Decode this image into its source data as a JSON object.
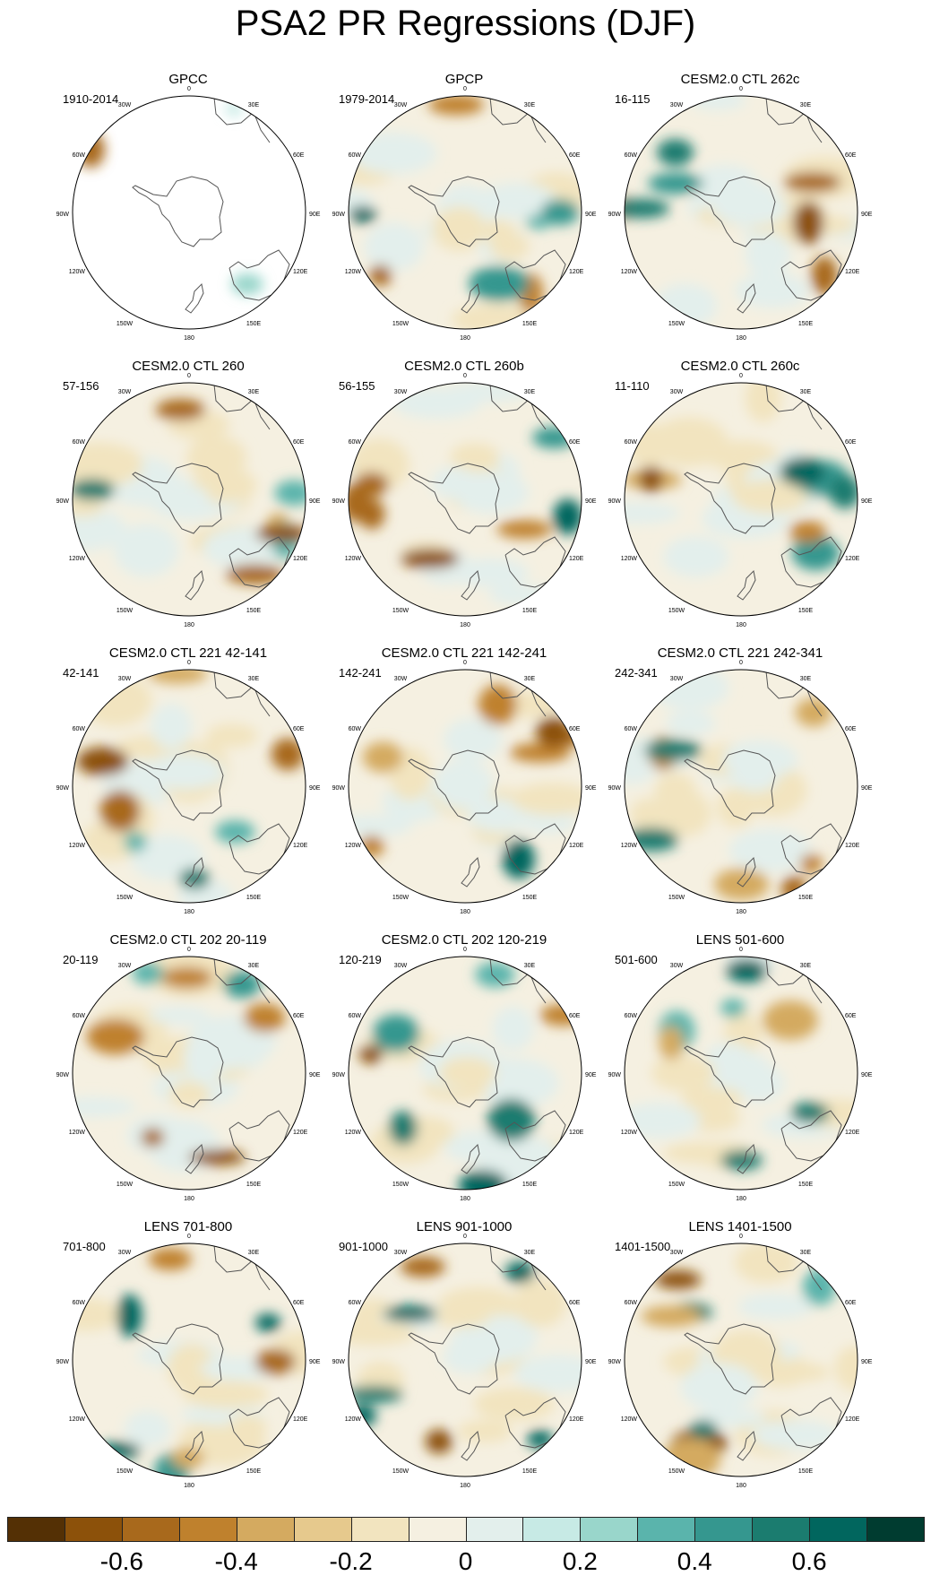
{
  "title": "PSA2 PR Regressions (DJF)",
  "map_labels": {
    "lon_top": "0",
    "lon_bottom": "180",
    "lon_left": "90W",
    "lon_right": "90E",
    "lon_30w": "30W",
    "lon_30e": "30E",
    "lon_60w": "60W",
    "lon_60e": "60E",
    "lon_120w": "120W",
    "lon_120e": "120E",
    "lon_150w": "150W",
    "lon_150e": "150E"
  },
  "panels": [
    {
      "title": "GPCC",
      "period": "1910-2014"
    },
    {
      "title": "GPCP",
      "period": "1979-2014"
    },
    {
      "title": "CESM2.0 CTL 262c",
      "period": "16-115"
    },
    {
      "title": "CESM2.0 CTL 260",
      "period": "57-156"
    },
    {
      "title": "CESM2.0 CTL 260b",
      "period": "56-155"
    },
    {
      "title": "CESM2.0 CTL 260c",
      "period": "11-110"
    },
    {
      "title": "CESM2.0 CTL 221 42-141",
      "period": "42-141"
    },
    {
      "title": "CESM2.0 CTL 221 142-241",
      "period": "142-241"
    },
    {
      "title": "CESM2.0 CTL 221 242-341",
      "period": "242-341"
    },
    {
      "title": "CESM2.0 CTL 202 20-119",
      "period": "20-119"
    },
    {
      "title": "CESM2.0 CTL 202 120-219",
      "period": "120-219"
    },
    {
      "title": "LENS 501-600",
      "period": "501-600"
    },
    {
      "title": "LENS 701-800",
      "period": "701-800"
    },
    {
      "title": "LENS 901-1000",
      "period": "901-1000"
    },
    {
      "title": "LENS 1401-1500",
      "period": "1401-1500"
    }
  ],
  "colorbar": {
    "colors": [
      "#543005",
      "#8c510a",
      "#a8691c",
      "#bf812d",
      "#d4aa60",
      "#e6c98d",
      "#f2e4bf",
      "#f5f0e1",
      "#e3efec",
      "#c7eae5",
      "#99d6cb",
      "#5ab4ac",
      "#35978f",
      "#1b7c6f",
      "#01665e",
      "#003c30"
    ],
    "labels": [
      "-0.6",
      "-0.4",
      "-0.2",
      "0",
      "0.2",
      "0.4",
      "0.6"
    ],
    "label_values": [
      -0.6,
      -0.4,
      -0.2,
      0,
      0.2,
      0.4,
      0.6
    ],
    "range": [
      -0.8,
      0.8
    ]
  }
}
